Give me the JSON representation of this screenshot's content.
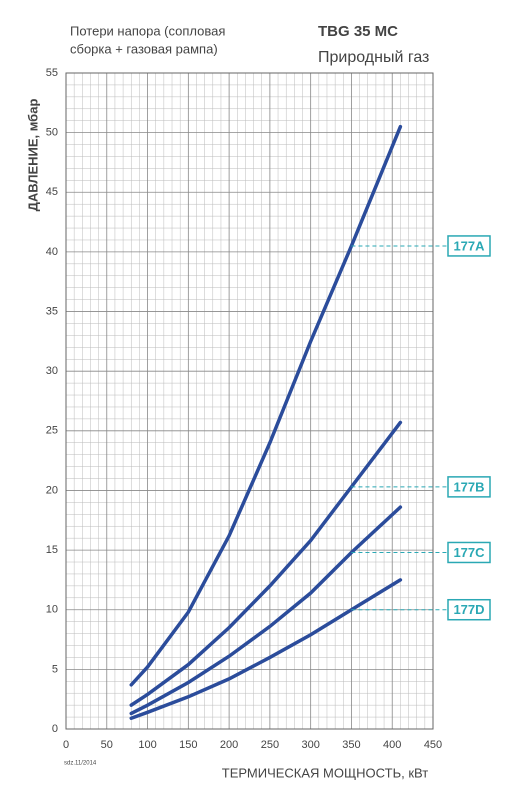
{
  "chart_data": {
    "type": "line",
    "title": "TBG 35 MC",
    "subtitle": "Природный газ",
    "note_lines": [
      "Потери напора (сопловая",
      "сборка + газовая рампа)"
    ],
    "code": "sdz.11/2014",
    "x_label": "ТЕРМИЧЕСКАЯ МОЩНОСТЬ, кВт",
    "y_label": "ДАВЛЕНИЕ, мбар",
    "x": [
      80,
      100,
      150,
      200,
      250,
      300,
      350,
      410
    ],
    "series": [
      {
        "name": "177A",
        "color": "#2b4c9b",
        "values": [
          3.7,
          5.2,
          9.8,
          16.2,
          24,
          32.5,
          40.5,
          50.5
        ]
      },
      {
        "name": "177B",
        "color": "#2b4c9b",
        "values": [
          2.0,
          2.9,
          5.4,
          8.5,
          12,
          15.8,
          20.3,
          25.7
        ]
      },
      {
        "name": "177C",
        "color": "#2b4c9b",
        "values": [
          1.3,
          2.0,
          3.9,
          6.1,
          8.6,
          11.4,
          14.8,
          18.6
        ]
      },
      {
        "name": "177D",
        "color": "#2b4c9b",
        "values": [
          0.9,
          1.4,
          2.7,
          4.2,
          6.0,
          7.9,
          10.0,
          12.5
        ]
      }
    ],
    "label_color": "#2aa8b4",
    "xlim": [
      0,
      450
    ],
    "xticks": [
      0,
      50,
      100,
      150,
      200,
      250,
      300,
      350,
      400,
      450
    ],
    "ylim": [
      0,
      55
    ],
    "yticks": [
      0,
      5,
      10,
      15,
      20,
      25,
      30,
      35,
      40,
      45,
      50,
      55
    ],
    "grid": true
  }
}
